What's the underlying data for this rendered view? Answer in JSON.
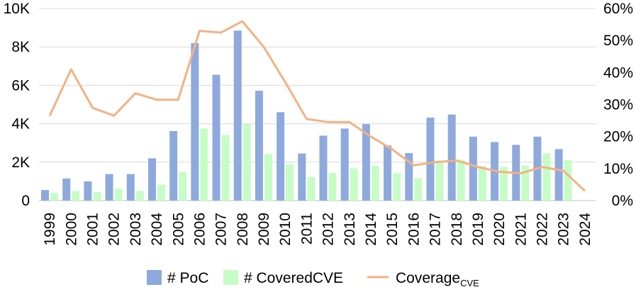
{
  "chart_data": {
    "type": "bar",
    "categories": [
      "1999",
      "2000",
      "2001",
      "2002",
      "2003",
      "2004",
      "2005",
      "2006",
      "2007",
      "2008",
      "2009",
      "2010",
      "2011",
      "2012",
      "2013",
      "2014",
      "2015",
      "2016",
      "2017",
      "2018",
      "2019",
      "2020",
      "2021",
      "2022",
      "2023",
      "2024"
    ],
    "series": [
      {
        "name": "# PoC",
        "kind": "bar",
        "axis": "left",
        "color": "#8EA9DB",
        "values": [
          550,
          1150,
          1000,
          1380,
          1380,
          2200,
          3620,
          8200,
          6550,
          8850,
          5720,
          4600,
          2450,
          3380,
          3750,
          3980,
          2870,
          2470,
          4320,
          4480,
          3330,
          3050,
          2900,
          3330,
          2680,
          0
        ]
      },
      {
        "name": "# CoveredCVE",
        "kind": "bar",
        "axis": "left",
        "color": "#C6FDC6",
        "values": [
          400,
          500,
          450,
          620,
          500,
          830,
          1500,
          3760,
          3420,
          4000,
          2430,
          1900,
          1230,
          1440,
          1680,
          1810,
          1420,
          1160,
          2040,
          2130,
          1800,
          1760,
          1820,
          2460,
          2100,
          0
        ]
      },
      {
        "name": "Coverage",
        "name_subscript": "CVE",
        "kind": "line",
        "axis": "right",
        "color": "#F4B183",
        "values": [
          26.5,
          41,
          29,
          26.5,
          33.5,
          31.5,
          31.5,
          53,
          52.5,
          56,
          48,
          37,
          25.5,
          24.5,
          24.5,
          20,
          16,
          11,
          12,
          12.5,
          10.5,
          9,
          8.5,
          10.5,
          9.3,
          3
        ]
      }
    ],
    "left_axis": {
      "ticks": [
        "0",
        "2K",
        "4K",
        "6K",
        "8K",
        "10K"
      ],
      "tick_values": [
        0,
        2000,
        4000,
        6000,
        8000,
        10000
      ],
      "ylim": [
        0,
        10000
      ]
    },
    "right_axis": {
      "ticks": [
        "0%",
        "10%",
        "20%",
        "30%",
        "40%",
        "50%",
        "60%"
      ],
      "tick_values": [
        0,
        10,
        20,
        30,
        40,
        50,
        60
      ],
      "ylim": [
        0,
        60
      ]
    },
    "title": "",
    "xlabel": "",
    "ylabel": "",
    "legend_position": "bottom-center",
    "grid": true
  }
}
